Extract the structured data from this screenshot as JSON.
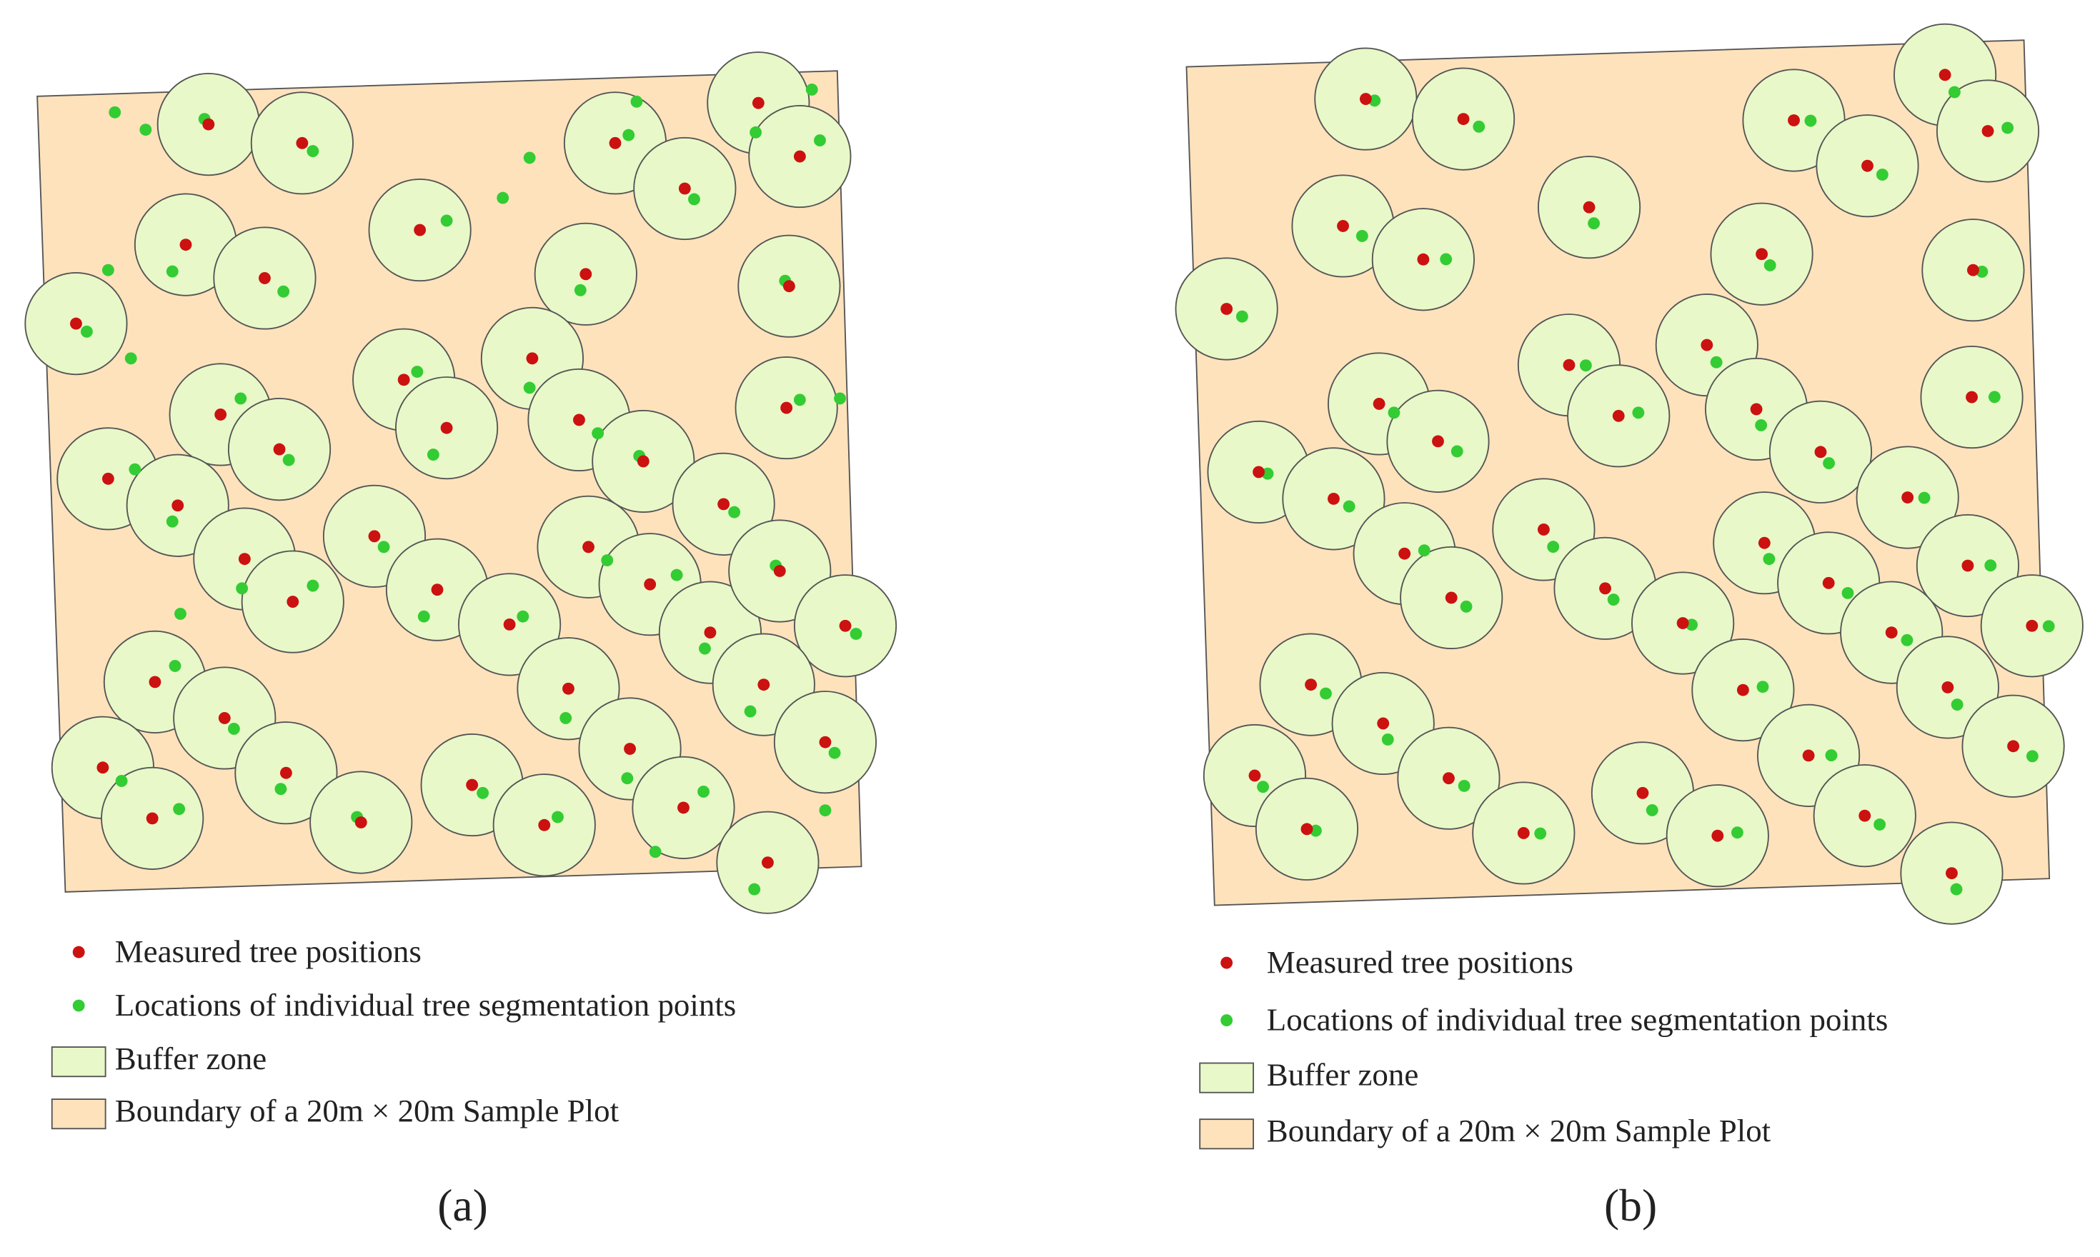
{
  "panels": [
    {
      "legend": [
        "Measured tree positions",
        "Locations of individual tree segmentation points",
        "Buffer zone",
        "Boundary of a 20m × 20m Sample Plot"
      ],
      "caption": "(a)"
    },
    {
      "legend": [
        "Measured tree positions",
        "Locations of individual tree segmentation points",
        "Buffer zone",
        "Boundary of a 20m × 20m Sample Plot"
      ],
      "caption": "(b)"
    }
  ]
}
